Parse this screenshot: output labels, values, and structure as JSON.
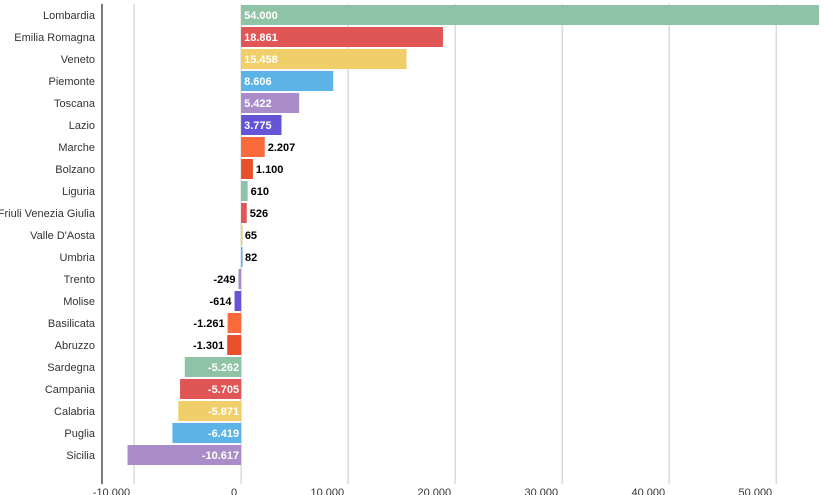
{
  "chart_data": {
    "type": "bar",
    "orientation": "horizontal",
    "title": "",
    "xlabel": "",
    "ylabel": "",
    "xlim": [
      -13000,
      54000
    ],
    "x_ticks": [
      -10000,
      0,
      10000,
      20000,
      30000,
      40000,
      50000
    ],
    "x_tick_labels": [
      "-10.000",
      "0",
      "10.000",
      "20.000",
      "30.000",
      "40.000",
      "50.000"
    ],
    "grid": "vertical",
    "legend": "none",
    "categories": [
      "Lombardia",
      "Emilia Romagna",
      "Veneto",
      "Piemonte",
      "Toscana",
      "Lazio",
      "Marche",
      "Bolzano",
      "Liguria",
      "Friuli Venezia Giulia",
      "Valle D'Aosta",
      "Umbria",
      "Trento",
      "Molise",
      "Basilicata",
      "Abruzzo",
      "Sardegna",
      "Campania",
      "Calabria",
      "Puglia",
      "Sicilia"
    ],
    "values": [
      54000,
      18861,
      15458,
      8606,
      5422,
      3775,
      2207,
      1100,
      610,
      526,
      65,
      82,
      -249,
      -614,
      -1261,
      -1301,
      -5262,
      -5705,
      -5871,
      -6419,
      -10617
    ],
    "value_labels": [
      "54.000",
      "18.861",
      "15.458",
      "8.606",
      "5.422",
      "3.775",
      "2.207",
      "1.100",
      "610",
      "526",
      "65",
      "82",
      "-249",
      "-614",
      "-1.261",
      "-1.301",
      "-5.262",
      "-5.705",
      "-5.871",
      "-6.419",
      "-10.617"
    ],
    "colors": [
      "#8fc3a5",
      "#e05555",
      "#f0cf6a",
      "#5bb4e5",
      "#aa8dc8",
      "#6654d6",
      "#fa6a3a",
      "#e8502b",
      "#8fc3a5",
      "#e05555",
      "#f0cf6a",
      "#5bb4e5",
      "#aa8dc8",
      "#6654d6",
      "#fa6a3a",
      "#e8502b",
      "#8fc3a5",
      "#e05555",
      "#f0cf6a",
      "#5bb4e5",
      "#aa8dc8"
    ]
  }
}
